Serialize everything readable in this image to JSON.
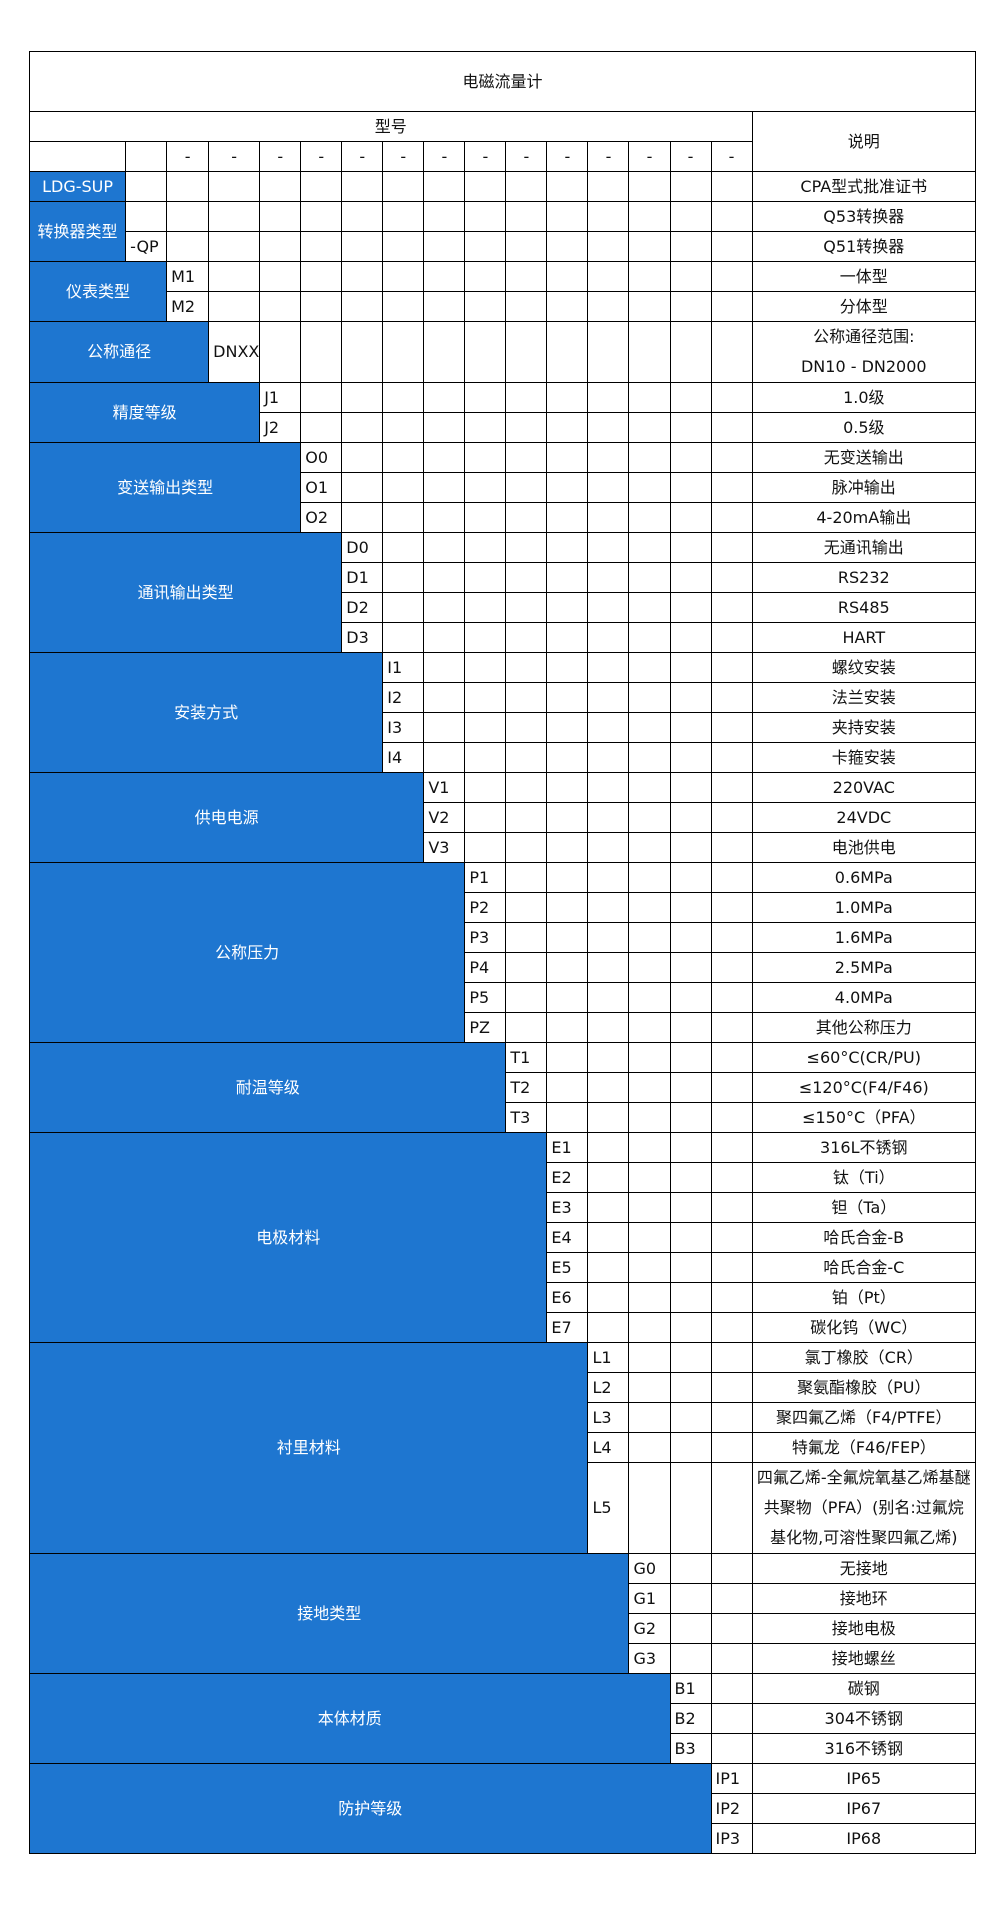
{
  "title": "电磁流量计",
  "header": {
    "model_label": "型号",
    "desc_label": "说明",
    "dash": "-"
  },
  "colors": {
    "group_bg": "#1e76d0",
    "group_text": "#ffffff",
    "border": "#000000"
  },
  "groups": [
    {
      "label": "LDG-SUP",
      "code_col": 1,
      "items": [
        {
          "code": "",
          "desc": [
            "CPA型式批准证书"
          ]
        }
      ]
    },
    {
      "label": "转换器类型",
      "code_col": 1,
      "items": [
        {
          "code": "",
          "desc": [
            "Q53转换器"
          ]
        },
        {
          "code": "-QP",
          "desc": [
            "Q51转换器"
          ]
        }
      ]
    },
    {
      "label": "仪表类型",
      "code_col": 2,
      "items": [
        {
          "code": "M1",
          "desc": [
            "一体型"
          ]
        },
        {
          "code": "M2",
          "desc": [
            "分体型"
          ]
        }
      ]
    },
    {
      "label": "公称通径",
      "code_col": 3,
      "items": [
        {
          "code": "DNXX",
          "desc": [
            "公称通径范围:",
            "DN10 - DN2000"
          ]
        }
      ]
    },
    {
      "label": "精度等级",
      "code_col": 4,
      "items": [
        {
          "code": "J1",
          "desc": [
            "1.0级"
          ]
        },
        {
          "code": "J2",
          "desc": [
            "0.5级"
          ]
        }
      ]
    },
    {
      "label": "变送输出类型",
      "code_col": 5,
      "items": [
        {
          "code": "O0",
          "desc": [
            "无变送输出"
          ]
        },
        {
          "code": "O1",
          "desc": [
            "脉冲输出"
          ]
        },
        {
          "code": "O2",
          "desc": [
            "4-20mA输出"
          ]
        }
      ]
    },
    {
      "label": "通讯输出类型",
      "code_col": 6,
      "items": [
        {
          "code": "D0",
          "desc": [
            "无通讯输出"
          ]
        },
        {
          "code": "D1",
          "desc": [
            "RS232"
          ]
        },
        {
          "code": "D2",
          "desc": [
            "RS485"
          ]
        },
        {
          "code": "D3",
          "desc": [
            "HART"
          ]
        }
      ]
    },
    {
      "label": "安装方式",
      "code_col": 7,
      "items": [
        {
          "code": "I1",
          "desc": [
            "螺纹安装"
          ]
        },
        {
          "code": "I2",
          "desc": [
            "法兰安装"
          ]
        },
        {
          "code": "I3",
          "desc": [
            "夹持安装"
          ]
        },
        {
          "code": "I4",
          "desc": [
            "卡箍安装"
          ]
        }
      ]
    },
    {
      "label": "供电电源",
      "code_col": 8,
      "items": [
        {
          "code": "V1",
          "desc": [
            "220VAC"
          ]
        },
        {
          "code": "V2",
          "desc": [
            "24VDC"
          ]
        },
        {
          "code": "V3",
          "desc": [
            "电池供电"
          ]
        }
      ]
    },
    {
      "label": "公称压力",
      "code_col": 9,
      "items": [
        {
          "code": "P1",
          "desc": [
            "0.6MPa"
          ]
        },
        {
          "code": "P2",
          "desc": [
            "1.0MPa"
          ]
        },
        {
          "code": "P3",
          "desc": [
            "1.6MPa"
          ]
        },
        {
          "code": "P4",
          "desc": [
            "2.5MPa"
          ]
        },
        {
          "code": "P5",
          "desc": [
            "4.0MPa"
          ]
        },
        {
          "code": "PZ",
          "desc": [
            "其他公称压力"
          ]
        }
      ]
    },
    {
      "label": "耐温等级",
      "code_col": 10,
      "items": [
        {
          "code": "T1",
          "desc": [
            "≤60°C(CR/PU)"
          ]
        },
        {
          "code": "T2",
          "desc": [
            "≤120°C(F4/F46)"
          ]
        },
        {
          "code": "T3",
          "desc": [
            "≤150°C（PFA）"
          ]
        }
      ]
    },
    {
      "label": "电极材料",
      "code_col": 11,
      "items": [
        {
          "code": "E1",
          "desc": [
            "316L不锈钢"
          ]
        },
        {
          "code": "E2",
          "desc": [
            "钛（Ti）"
          ]
        },
        {
          "code": "E3",
          "desc": [
            "钽（Ta）"
          ]
        },
        {
          "code": "E4",
          "desc": [
            "哈氏合金-B"
          ]
        },
        {
          "code": "E5",
          "desc": [
            "哈氏合金-C"
          ]
        },
        {
          "code": "E6",
          "desc": [
            "铂（Pt）"
          ]
        },
        {
          "code": "E7",
          "desc": [
            "碳化钨（WC）"
          ]
        }
      ]
    },
    {
      "label": "衬里材料",
      "code_col": 12,
      "items": [
        {
          "code": "L1",
          "desc": [
            "氯丁橡胶（CR）"
          ]
        },
        {
          "code": "L2",
          "desc": [
            "聚氨酯橡胶（PU）"
          ]
        },
        {
          "code": "L3",
          "desc": [
            "聚四氟乙烯（F4/PTFE）"
          ]
        },
        {
          "code": "L4",
          "desc": [
            "特氟龙（F46/FEP）"
          ]
        },
        {
          "code": "L5",
          "desc": [
            "四氟乙烯-全氟烷氧基乙烯基醚共聚物（PFA）(别名:过氟烷基化物,可溶性聚四氟乙烯)"
          ]
        }
      ]
    },
    {
      "label": "接地类型",
      "code_col": 13,
      "items": [
        {
          "code": "G0",
          "desc": [
            "无接地"
          ]
        },
        {
          "code": "G1",
          "desc": [
            "接地环"
          ]
        },
        {
          "code": "G2",
          "desc": [
            "接地电极"
          ]
        },
        {
          "code": "G3",
          "desc": [
            "接地螺丝"
          ]
        }
      ]
    },
    {
      "label": "本体材质",
      "code_col": 14,
      "items": [
        {
          "code": "B1",
          "desc": [
            "碳钢"
          ]
        },
        {
          "code": "B2",
          "desc": [
            "304不锈钢"
          ]
        },
        {
          "code": "B3",
          "desc": [
            "316不锈钢"
          ]
        }
      ]
    },
    {
      "label": "防护等级",
      "code_col": 15,
      "items": [
        {
          "code": "IP1",
          "desc": [
            "IP65"
          ]
        },
        {
          "code": "IP2",
          "desc": [
            "IP67"
          ]
        },
        {
          "code": "IP3",
          "desc": [
            "IP68"
          ]
        }
      ]
    }
  ]
}
